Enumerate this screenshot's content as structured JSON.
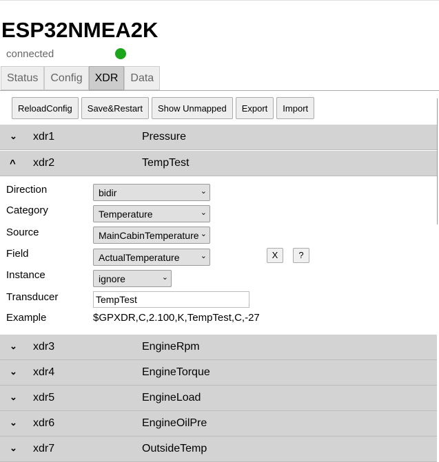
{
  "app": {
    "title": "ESP32NMEA2K",
    "status": "connected",
    "status_color": "#1aa51a"
  },
  "tabs": [
    {
      "label": "Status"
    },
    {
      "label": "Config"
    },
    {
      "label": "XDR",
      "active": true
    },
    {
      "label": "Data"
    }
  ],
  "toolbar": [
    "ReloadConfig",
    "Save&Restart",
    "Show Unmapped",
    "Export",
    "Import"
  ],
  "rows": [
    {
      "id": "xdr1",
      "name": "Pressure",
      "expanded": false
    },
    {
      "id": "xdr2",
      "name": "TempTest",
      "expanded": true
    },
    {
      "id": "xdr3",
      "name": "EngineRpm",
      "expanded": false
    },
    {
      "id": "xdr4",
      "name": "EngineTorque",
      "expanded": false
    },
    {
      "id": "xdr5",
      "name": "EngineLoad",
      "expanded": false
    },
    {
      "id": "xdr6",
      "name": "EngineOilPre",
      "expanded": false
    },
    {
      "id": "xdr7",
      "name": "OutsideTemp",
      "expanded": false
    }
  ],
  "detail": {
    "direction": {
      "label": "Direction",
      "value": "bidir"
    },
    "category": {
      "label": "Category",
      "value": "Temperature"
    },
    "source": {
      "label": "Source",
      "value": "MainCabinTemperature"
    },
    "field": {
      "label": "Field",
      "value": "ActualTemperature",
      "clear": "X",
      "help": "?"
    },
    "instance": {
      "label": "Instance",
      "value": "ignore"
    },
    "transducer": {
      "label": "Transducer",
      "value": "TempTest"
    },
    "example": {
      "label": "Example",
      "value": "$GPXDR,C,2.100,K,TempTest,C,-27"
    }
  },
  "icons": {
    "collapsed": "chevron-down-icon",
    "expanded": "chevron-up-icon"
  }
}
